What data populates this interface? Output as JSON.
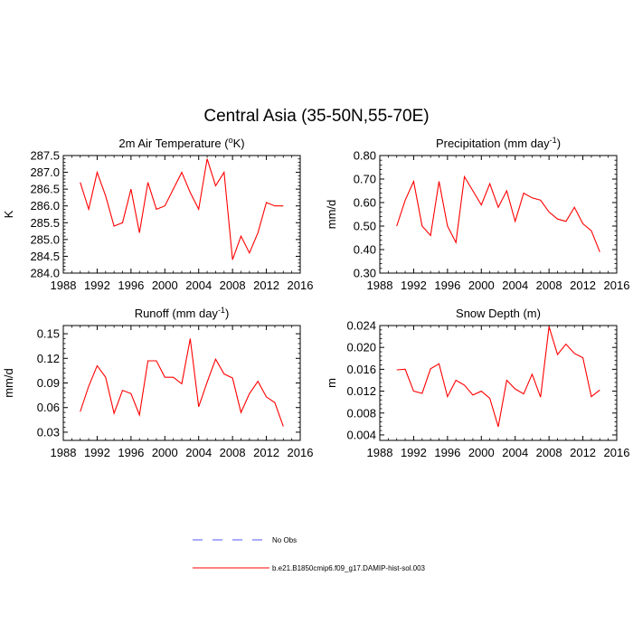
{
  "title": "Central Asia (35-50N,55-70E)",
  "x_tick_labels": [
    "1988",
    "1992",
    "1996",
    "2000",
    "2004",
    "2008",
    "2012",
    "2016"
  ],
  "legend": [
    {
      "label": "No Obs",
      "color": "#5555ff",
      "style": "dashed"
    },
    {
      "label": "b.e21.B1850cmip6.f09_g17.DAMIP-hist-sol.003",
      "color": "#ff0000",
      "style": "solid"
    }
  ],
  "line_color": "#ff0000",
  "chart_data": [
    {
      "type": "line",
      "title": "2m Air Temperature (",
      "title_sup": "o",
      "title_after": "K)",
      "ylabel": "K",
      "xlim": [
        1988,
        2016
      ],
      "ylim": [
        284.0,
        287.5
      ],
      "x_ticks": [
        1988,
        1992,
        1996,
        2000,
        2004,
        2008,
        2012,
        2016
      ],
      "y_ticks": [
        284.0,
        284.5,
        285.0,
        285.5,
        286.0,
        286.5,
        287.0,
        287.5
      ],
      "y_tick_labels": [
        "284.0",
        "284.5",
        "285.0",
        "285.5",
        "286.0",
        "286.5",
        "287.0",
        "287.5"
      ],
      "x": [
        1990,
        1991,
        1992,
        1993,
        1994,
        1995,
        1996,
        1997,
        1998,
        1999,
        2000,
        2001,
        2002,
        2003,
        2004,
        2005,
        2006,
        2007,
        2008,
        2009,
        2010,
        2011,
        2012,
        2013,
        2014
      ],
      "values": [
        286.7,
        285.9,
        287.0,
        286.3,
        285.4,
        285.5,
        286.5,
        285.2,
        286.7,
        285.9,
        286.0,
        286.5,
        287.0,
        286.4,
        285.9,
        287.4,
        286.6,
        287.0,
        284.4,
        285.1,
        284.6,
        285.2,
        286.1,
        286.0,
        286.0
      ]
    },
    {
      "type": "line",
      "title": "Precipitation (mm day",
      "title_sup": "-1",
      "title_after": ")",
      "ylabel": "mm/d",
      "xlim": [
        1988,
        2016
      ],
      "ylim": [
        0.3,
        0.8
      ],
      "x_ticks": [
        1988,
        1992,
        1996,
        2000,
        2004,
        2008,
        2012,
        2016
      ],
      "y_ticks": [
        0.3,
        0.4,
        0.5,
        0.6,
        0.7,
        0.8
      ],
      "y_tick_labels": [
        "0.30",
        "0.40",
        "0.50",
        "0.60",
        "0.70",
        "0.80"
      ],
      "x": [
        1990,
        1991,
        1992,
        1993,
        1994,
        1995,
        1996,
        1997,
        1998,
        1999,
        2000,
        2001,
        2002,
        2003,
        2004,
        2005,
        2006,
        2007,
        2008,
        2009,
        2010,
        2011,
        2012,
        2013,
        2014
      ],
      "values": [
        0.5,
        0.61,
        0.69,
        0.5,
        0.46,
        0.69,
        0.5,
        0.43,
        0.71,
        0.65,
        0.59,
        0.68,
        0.58,
        0.65,
        0.52,
        0.64,
        0.62,
        0.61,
        0.56,
        0.53,
        0.52,
        0.58,
        0.51,
        0.48,
        0.39
      ]
    },
    {
      "type": "line",
      "title": "Runoff (mm day",
      "title_sup": "-1",
      "title_after": ")",
      "ylabel": "mm/d",
      "xlim": [
        1988,
        2016
      ],
      "ylim": [
        0.02,
        0.16
      ],
      "x_ticks": [
        1988,
        1992,
        1996,
        2000,
        2004,
        2008,
        2012,
        2016
      ],
      "y_ticks": [
        0.03,
        0.06,
        0.09,
        0.12,
        0.15
      ],
      "y_tick_labels": [
        "0.03",
        "0.06",
        "0.09",
        "0.12",
        "0.15"
      ],
      "x": [
        1990,
        1991,
        1992,
        1993,
        1994,
        1995,
        1996,
        1997,
        1998,
        1999,
        2000,
        2001,
        2002,
        2003,
        2004,
        2005,
        2006,
        2007,
        2008,
        2009,
        2010,
        2011,
        2012,
        2013,
        2014
      ],
      "values": [
        0.055,
        0.086,
        0.111,
        0.097,
        0.053,
        0.081,
        0.077,
        0.051,
        0.117,
        0.117,
        0.097,
        0.097,
        0.089,
        0.144,
        0.061,
        0.091,
        0.119,
        0.101,
        0.096,
        0.054,
        0.077,
        0.092,
        0.073,
        0.066,
        0.037
      ]
    },
    {
      "type": "line",
      "title": "Snow Depth (m)",
      "title_sup": "",
      "title_after": "",
      "ylabel": "m",
      "xlim": [
        1988,
        2016
      ],
      "ylim": [
        0.003,
        0.024
      ],
      "x_ticks": [
        1988,
        1992,
        1996,
        2000,
        2004,
        2008,
        2012,
        2016
      ],
      "y_ticks": [
        0.004,
        0.008,
        0.012,
        0.016,
        0.02,
        0.024
      ],
      "y_tick_labels": [
        "0.004",
        "0.008",
        "0.012",
        "0.016",
        "0.020",
        "0.024"
      ],
      "x": [
        1990,
        1991,
        1992,
        1993,
        1994,
        1995,
        1996,
        1997,
        1998,
        1999,
        2000,
        2001,
        2002,
        2003,
        2004,
        2005,
        2006,
        2007,
        2008,
        2009,
        2010,
        2011,
        2012,
        2013,
        2014
      ],
      "values": [
        0.0159,
        0.016,
        0.012,
        0.0116,
        0.0161,
        0.017,
        0.011,
        0.014,
        0.0131,
        0.0113,
        0.012,
        0.0107,
        0.0055,
        0.014,
        0.0124,
        0.0115,
        0.0151,
        0.0109,
        0.0238,
        0.0187,
        0.0206,
        0.0189,
        0.0181,
        0.011,
        0.0122
      ]
    }
  ]
}
